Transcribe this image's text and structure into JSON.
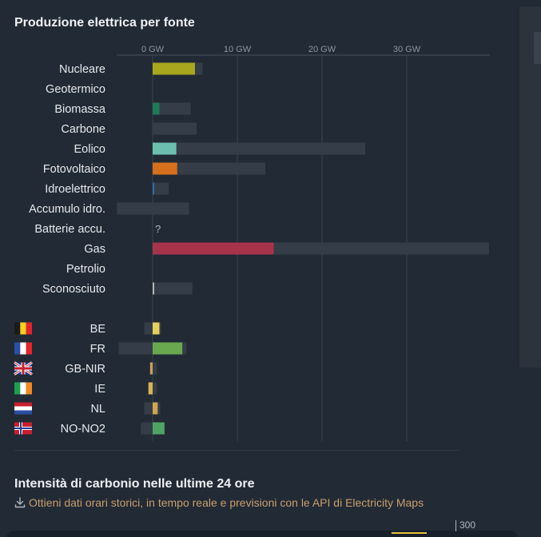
{
  "panel": {
    "title": "Produzione elettrica per fonte"
  },
  "chart_data": {
    "type": "bar",
    "orientation": "horizontal",
    "unit": "GW",
    "xlim": [
      -4.2,
      39.7
    ],
    "x_ticks": [
      {
        "value": 0,
        "label": "0 GW"
      },
      {
        "value": 10,
        "label": "10 GW"
      },
      {
        "value": 20,
        "label": "20 GW"
      },
      {
        "value": 30,
        "label": "30 GW"
      }
    ],
    "grid": true,
    "sources": [
      {
        "name": "Nucleare",
        "production": 5.0,
        "capacity": 5.9,
        "color": "#a8a71e"
      },
      {
        "name": "Geotermico",
        "production": 0,
        "capacity": 0,
        "color": "#a6413d"
      },
      {
        "name": "Biomassa",
        "production": 0.8,
        "capacity": 4.5,
        "color": "#1f7a5a"
      },
      {
        "name": "Carbone",
        "production": 0,
        "capacity": 5.2,
        "color": "#545454"
      },
      {
        "name": "Eolico",
        "production": 2.8,
        "capacity": 25.1,
        "color": "#6cbfae"
      },
      {
        "name": "Fotovoltaico",
        "production": 2.9,
        "capacity": 13.3,
        "color": "#d6701c"
      },
      {
        "name": "Idroelettrico",
        "production": 0.15,
        "capacity": 1.9,
        "color": "#2d6fa8"
      },
      {
        "name": "Accumulo idro.",
        "production": 0,
        "capacity": 4.3,
        "min": -4.2,
        "color": "#0b3a6b"
      },
      {
        "name": "Batterie accu.",
        "production": null,
        "capacity": null,
        "unknown_label": "?",
        "color": "#b0a0d0"
      },
      {
        "name": "Gas",
        "production": 14.3,
        "capacity": 39.7,
        "color": "#a7334b"
      },
      {
        "name": "Petrolio",
        "production": 0,
        "capacity": 0,
        "color": "#7a4a2a"
      },
      {
        "name": "Sconosciuto",
        "production": 0.15,
        "capacity": 4.7,
        "color": "#b4b4b4"
      }
    ],
    "exchanges": [
      {
        "zone": "BE",
        "flag": "be",
        "value": 0.8,
        "min": -1.0,
        "max": 1.0,
        "color": "#e4d05a"
      },
      {
        "zone": "FR",
        "flag": "fr",
        "value": 3.5,
        "min": -4.0,
        "max": 4.0,
        "color": "#6aa84f"
      },
      {
        "zone": "GB-NIR",
        "flag": "gb",
        "value": -0.3,
        "min": -0.3,
        "max": 0.5,
        "color": "#c9a15a"
      },
      {
        "zone": "IE",
        "flag": "ie",
        "value": -0.5,
        "min": -0.5,
        "max": 0.5,
        "color": "#d8b452"
      },
      {
        "zone": "NL",
        "flag": "nl",
        "value": 0.6,
        "min": -1.0,
        "max": 0.9,
        "color": "#cfa550"
      },
      {
        "zone": "NO-NO2",
        "flag": "no",
        "value": 1.4,
        "min": -1.4,
        "max": 1.4,
        "color": "#4fa463"
      }
    ]
  },
  "carbon_section": {
    "title": "Intensità di carbonio nelle ultime 24 ore",
    "api_link": "Ottieni dati orari storici, in tempo reale e previsioni con le API di Electricity Maps",
    "axis_label": "300",
    "link_color": "#c99f6c",
    "download_icon": "download-icon"
  }
}
